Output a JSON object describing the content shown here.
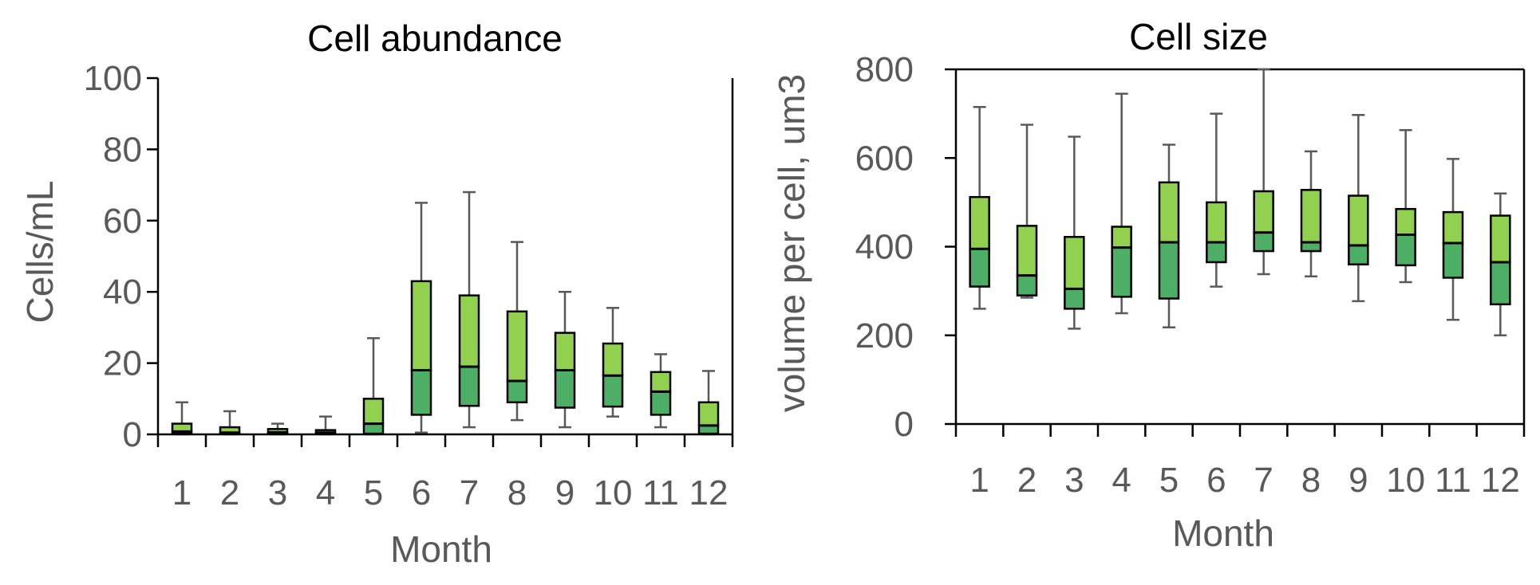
{
  "colors": {
    "upper_box": "#92d050",
    "lower_box": "#4caf65",
    "box_stroke": "#000000",
    "whisker": "#595959",
    "axis": "#000000",
    "text": "#595959"
  },
  "chart_data": [
    {
      "type": "box",
      "title": "Cell abundance",
      "xlabel": "Month",
      "ylabel": "Cells/mL",
      "ylim": [
        0,
        100
      ],
      "yticks": [
        0,
        20,
        40,
        60,
        80,
        100
      ],
      "categories": [
        "1",
        "2",
        "3",
        "4",
        "5",
        "6",
        "7",
        "8",
        "9",
        "10",
        "11",
        "12"
      ],
      "boxes": [
        {
          "min": 0,
          "q1": 0.2,
          "median": 0.8,
          "q3": 3,
          "max": 9
        },
        {
          "min": 0,
          "q1": 0.2,
          "median": 0.5,
          "q3": 2,
          "max": 6.5
        },
        {
          "min": 0,
          "q1": 0.2,
          "median": 0.6,
          "q3": 1.5,
          "max": 3
        },
        {
          "min": 0,
          "q1": 0.1,
          "median": 0.5,
          "q3": 1.2,
          "max": 5
        },
        {
          "min": 0,
          "q1": 0.2,
          "median": 3,
          "q3": 10,
          "max": 27
        },
        {
          "min": 0.5,
          "q1": 5.5,
          "median": 18,
          "q3": 43,
          "max": 65
        },
        {
          "min": 2,
          "q1": 8,
          "median": 19,
          "q3": 39,
          "max": 68
        },
        {
          "min": 4,
          "q1": 9,
          "median": 15,
          "q3": 34.5,
          "max": 54
        },
        {
          "min": 2,
          "q1": 7.5,
          "median": 18,
          "q3": 28.5,
          "max": 40
        },
        {
          "min": 5,
          "q1": 7.8,
          "median": 16.5,
          "q3": 25.5,
          "max": 35.5
        },
        {
          "min": 2,
          "q1": 5.5,
          "median": 12,
          "q3": 17.5,
          "max": 22.5
        },
        {
          "min": 0,
          "q1": 0.2,
          "median": 2.5,
          "q3": 9,
          "max": 17.8
        }
      ]
    },
    {
      "type": "box",
      "title": "Cell size",
      "xlabel": "Month",
      "ylabel": "volume per cell, um3",
      "ylim": [
        0,
        800
      ],
      "yticks": [
        0,
        200,
        400,
        600,
        800
      ],
      "categories": [
        "1",
        "2",
        "3",
        "4",
        "5",
        "6",
        "7",
        "8",
        "9",
        "10",
        "11",
        "12"
      ],
      "boxes": [
        {
          "min": 260,
          "q1": 310,
          "median": 395,
          "q3": 512,
          "max": 715
        },
        {
          "min": 285,
          "q1": 290,
          "median": 335,
          "q3": 447,
          "max": 675
        },
        {
          "min": 215,
          "q1": 260,
          "median": 305,
          "q3": 422,
          "max": 648
        },
        {
          "min": 250,
          "q1": 287,
          "median": 398,
          "q3": 445,
          "max": 745
        },
        {
          "min": 218,
          "q1": 283,
          "median": 410,
          "q3": 545,
          "max": 630
        },
        {
          "min": 310,
          "q1": 365,
          "median": 410,
          "q3": 500,
          "max": 700
        },
        {
          "min": 338,
          "q1": 390,
          "median": 432,
          "q3": 525,
          "max": 800
        },
        {
          "min": 333,
          "q1": 390,
          "median": 410,
          "q3": 528,
          "max": 615
        },
        {
          "min": 277,
          "q1": 360,
          "median": 403,
          "q3": 515,
          "max": 697
        },
        {
          "min": 320,
          "q1": 358,
          "median": 427,
          "q3": 485,
          "max": 663
        },
        {
          "min": 235,
          "q1": 330,
          "median": 408,
          "q3": 478,
          "max": 598
        },
        {
          "min": 200,
          "q1": 270,
          "median": 365,
          "q3": 470,
          "max": 520
        }
      ]
    }
  ]
}
